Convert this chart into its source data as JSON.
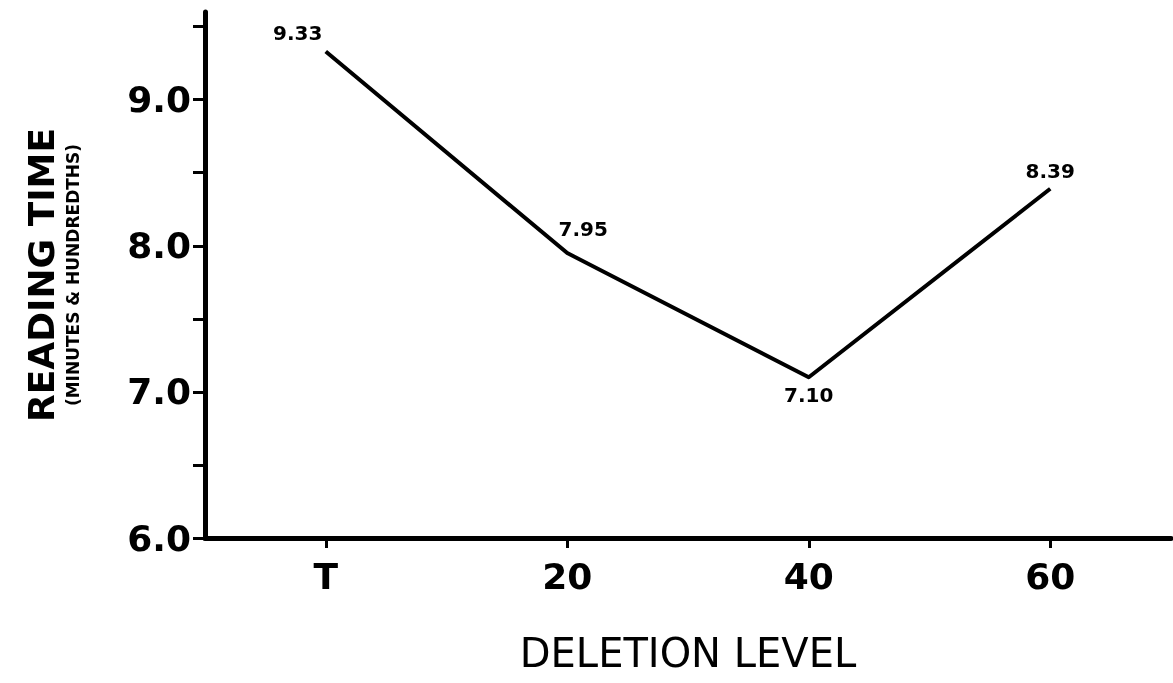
{
  "chart_data": {
    "type": "line",
    "xlabel": "DELETION LEVEL",
    "ylabel": "READING TIME (MINUTES & HUNDREDTHS)",
    "categories": [
      "T",
      "20",
      "40",
      "60"
    ],
    "series": [
      {
        "color": "#000000",
        "values": [
          9.33,
          7.95,
          7.1,
          8.39
        ],
        "value_labels": [
          "9.33",
          "7.95",
          "7.10",
          "8.39"
        ]
      }
    ],
    "ylim": [
      6.0,
      9.6
    ],
    "yticks": [
      {
        "value": 6,
        "label": "6.0"
      },
      {
        "value": 6.5,
        "label": null
      },
      {
        "value": 7,
        "label": "7.0"
      },
      {
        "value": 7.5,
        "label": null
      },
      {
        "value": 8,
        "label": "8.0"
      },
      {
        "value": 8.5,
        "label": null
      },
      {
        "value": 9,
        "label": "9.0"
      },
      {
        "value": 9.5,
        "label": null
      }
    ],
    "grid": false,
    "marker": "none",
    "line_style": "solid"
  }
}
